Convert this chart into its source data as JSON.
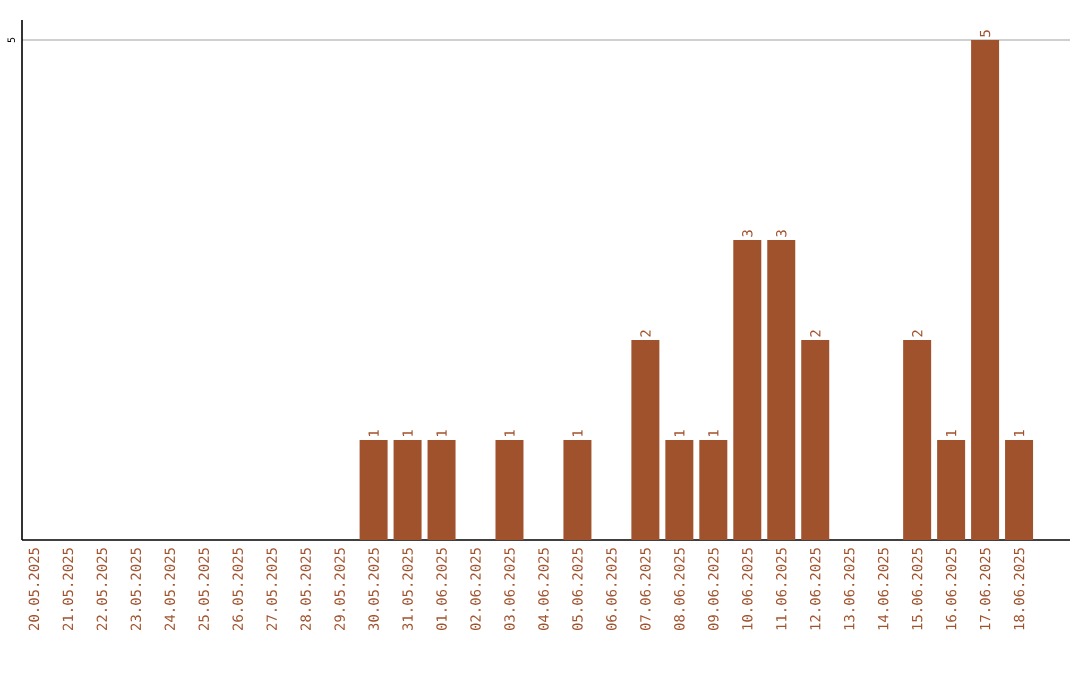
{
  "chart_data": {
    "type": "bar",
    "categories": [
      "20.05.2025",
      "21.05.2025",
      "22.05.2025",
      "23.05.2025",
      "24.05.2025",
      "25.05.2025",
      "26.05.2025",
      "27.05.2025",
      "28.05.2025",
      "29.05.2025",
      "30.05.2025",
      "31.05.2025",
      "01.06.2025",
      "02.06.2025",
      "03.06.2025",
      "04.06.2025",
      "05.06.2025",
      "06.06.2025",
      "07.06.2025",
      "08.06.2025",
      "09.06.2025",
      "10.06.2025",
      "11.06.2025",
      "12.06.2025",
      "13.06.2025",
      "14.06.2025",
      "15.06.2025",
      "16.06.2025",
      "17.06.2025",
      "18.06.2025"
    ],
    "values": [
      0,
      0,
      0,
      0,
      0,
      0,
      0,
      0,
      0,
      0,
      1,
      1,
      1,
      0,
      1,
      0,
      1,
      0,
      2,
      1,
      1,
      3,
      3,
      2,
      0,
      0,
      2,
      1,
      5,
      1
    ],
    "value_labels": [
      null,
      null,
      null,
      null,
      null,
      null,
      null,
      null,
      null,
      null,
      "1",
      "1",
      "1",
      null,
      "1",
      null,
      "1",
      null,
      "2",
      "1",
      "1",
      "3",
      "3",
      "2",
      null,
      null,
      "2",
      "1",
      "5",
      "1"
    ],
    "color": "#a0522d",
    "ylim": [
      0,
      5.2
    ],
    "yticks": [
      5
    ],
    "grid": "y"
  }
}
